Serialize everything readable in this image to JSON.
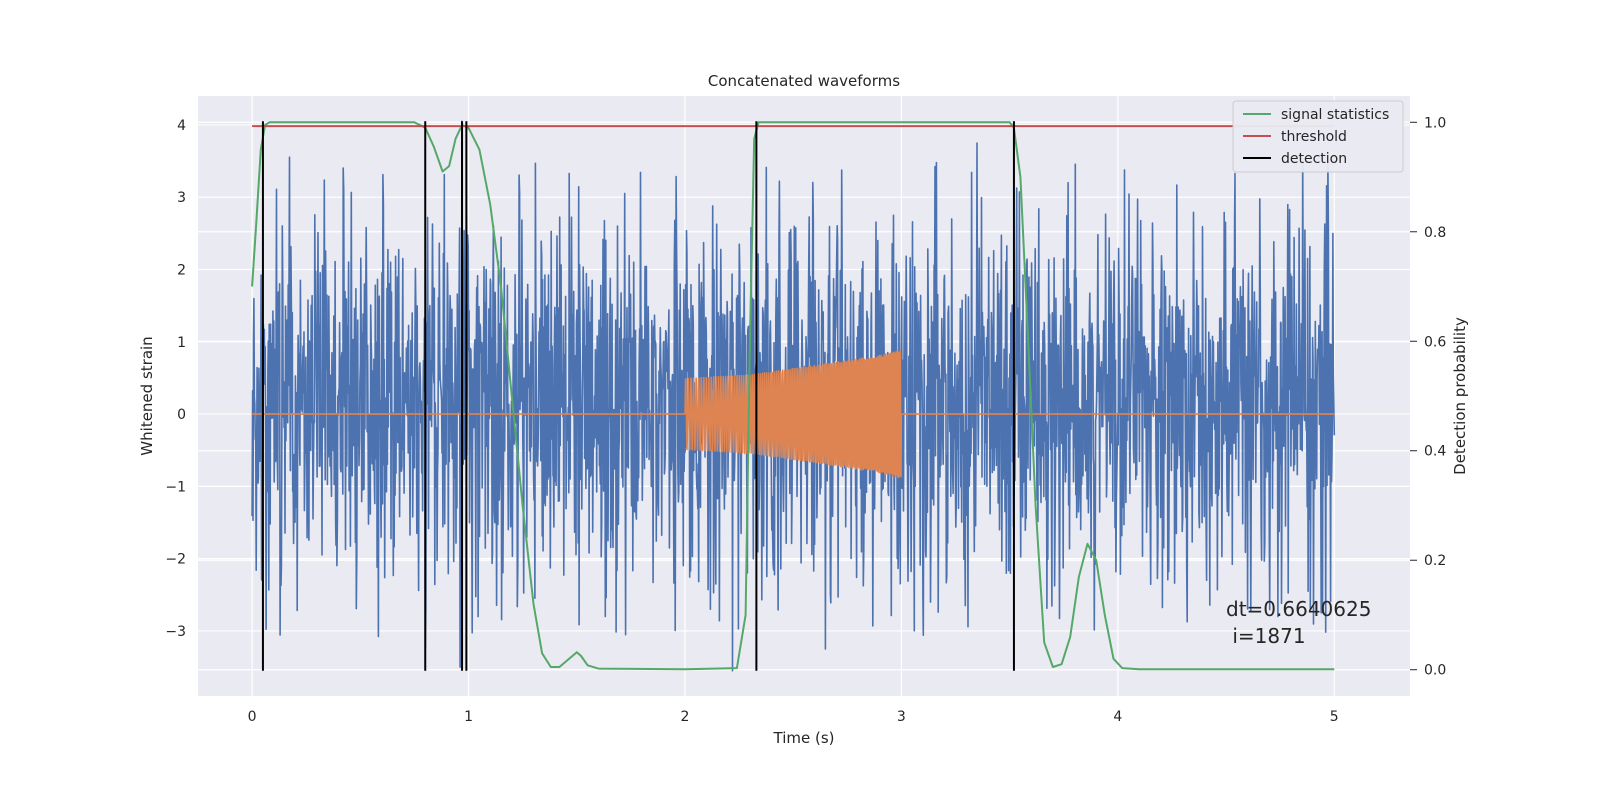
{
  "chart_data": {
    "type": "line",
    "title": "Concatenated waveforms",
    "xlabel": "Time (s)",
    "ylabel": "Whitened strain",
    "y2label": "Detection probability",
    "xlim": [
      -0.25,
      5.35
    ],
    "ylim": [
      -3.9,
      4.4
    ],
    "y2lim": [
      -0.048,
      1.048
    ],
    "x_ticks": [
      0,
      1,
      2,
      3,
      4,
      5
    ],
    "y_ticks": [
      -3,
      -2,
      -1,
      0,
      1,
      2,
      3,
      4
    ],
    "y2_ticks": [
      0.0,
      0.2,
      0.4,
      0.6,
      0.8,
      1.0
    ],
    "grid": true,
    "legend_position": "top-right",
    "colors": {
      "strain": "#4c72b0",
      "injection": "#dd8452",
      "signal_statistics": "#55a868",
      "threshold": "#c44e52",
      "detection": "#000000",
      "background": "#eaeaf2",
      "grid": "#ffffff"
    },
    "strain": {
      "x_range": [
        0,
        5
      ],
      "typical_envelope": [
        -1.9,
        2.3
      ],
      "max": 4.05,
      "min": -3.65,
      "notable_spikes": [
        {
          "x": 0.97,
          "y": 4.05
        },
        {
          "x": 0.96,
          "y": -3.5
        },
        {
          "x": 0.8,
          "y": -3.25
        },
        {
          "x": 2.22,
          "y": -3.55
        },
        {
          "x": 2.65,
          "y": -3.25
        },
        {
          "x": 3.35,
          "y": 3.75
        },
        {
          "x": 3.77,
          "y": 3.2
        },
        {
          "x": 4.88,
          "y": -2.45
        }
      ]
    },
    "injection": {
      "x_range": [
        2.0,
        3.0
      ],
      "amplitude_start": 0.5,
      "amplitude_end": 0.9,
      "envelope": [
        [
          2.0,
          0.5
        ],
        [
          2.3,
          0.55
        ],
        [
          2.6,
          0.68
        ],
        [
          2.9,
          0.82
        ],
        [
          3.0,
          0.9
        ]
      ]
    },
    "series": [
      {
        "name": "signal statistics",
        "axis": "right",
        "x": [
          0.0,
          0.02,
          0.04,
          0.06,
          0.08,
          0.1,
          0.3,
          0.75,
          0.8,
          0.84,
          0.88,
          0.91,
          0.94,
          0.97,
          1.0,
          1.05,
          1.1,
          1.15,
          1.2,
          1.25,
          1.3,
          1.34,
          1.38,
          1.42,
          1.45,
          1.5,
          1.52,
          1.55,
          1.6,
          2.0,
          2.24,
          2.28,
          2.3,
          2.32,
          2.34,
          2.38,
          2.45,
          3.5,
          3.52,
          3.55,
          3.58,
          3.62,
          3.66,
          3.7,
          3.74,
          3.78,
          3.82,
          3.86,
          3.9,
          3.94,
          3.98,
          4.02,
          4.1,
          5.0
        ],
        "y": [
          0.7,
          0.82,
          0.95,
          0.995,
          1.0,
          1.0,
          1.0,
          1.0,
          0.99,
          0.955,
          0.91,
          0.92,
          0.97,
          0.995,
          0.99,
          0.95,
          0.85,
          0.7,
          0.5,
          0.3,
          0.12,
          0.03,
          0.005,
          0.005,
          0.015,
          0.032,
          0.025,
          0.008,
          0.002,
          0.001,
          0.003,
          0.1,
          0.6,
          0.97,
          1.0,
          1.0,
          1.0,
          1.0,
          0.99,
          0.9,
          0.65,
          0.3,
          0.05,
          0.005,
          0.01,
          0.06,
          0.17,
          0.23,
          0.2,
          0.1,
          0.02,
          0.003,
          0.001,
          0.001
        ]
      },
      {
        "name": "threshold",
        "axis": "right",
        "x": [
          0,
          5
        ],
        "y": [
          0.993,
          0.993
        ]
      }
    ],
    "detections": {
      "name": "detection",
      "x": [
        0.05,
        0.8,
        0.97,
        0.99,
        2.33,
        3.52
      ],
      "y_range": [
        -3.55,
        4.05
      ]
    },
    "legend": [
      {
        "label": "signal statistics",
        "color": "#55a868"
      },
      {
        "label": "threshold",
        "color": "#c44e52"
      },
      {
        "label": "detection",
        "color": "#000000"
      }
    ],
    "annotation": {
      "line1": "dt=0.6640625",
      "line2": " i=1871",
      "x": 4.5,
      "y": -2.7
    }
  }
}
